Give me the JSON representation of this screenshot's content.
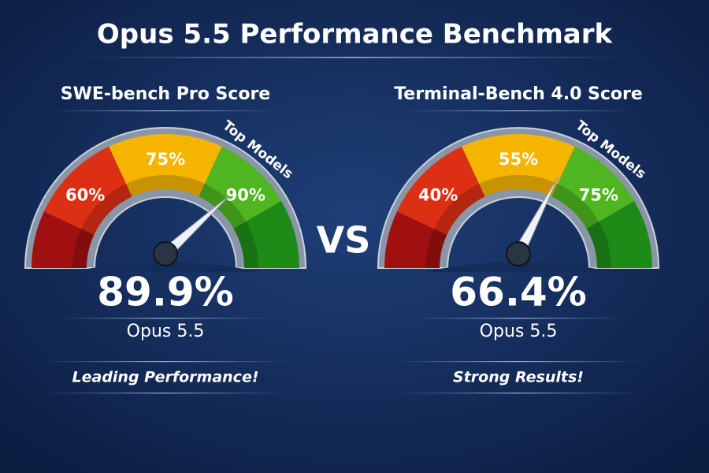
{
  "title": "Opus 5.5 Performance Benchmark",
  "vs": "VS",
  "chart_data": [
    {
      "type": "gauge",
      "title": "SWE-bench Pro Score",
      "value": 89.9,
      "value_label": "89.9%",
      "label": "Opus 5.5",
      "annotation": "Leading Performance!",
      "zone_label": "Top Models",
      "ticks": [
        {
          "value": 60,
          "label": "60%"
        },
        {
          "value": 75,
          "label": "75%"
        },
        {
          "value": 90,
          "label": "90%"
        }
      ]
    },
    {
      "type": "gauge",
      "title": "Terminal-Bench 4.0 Score",
      "value": 66.4,
      "value_label": "66.4%",
      "label": "Opus 5.5",
      "annotation": "Strong Results!",
      "zone_label": "Top Models",
      "ticks": [
        {
          "value": 40,
          "label": "40%"
        },
        {
          "value": 55,
          "label": "55%"
        },
        {
          "value": 75,
          "label": "75%"
        }
      ]
    }
  ]
}
